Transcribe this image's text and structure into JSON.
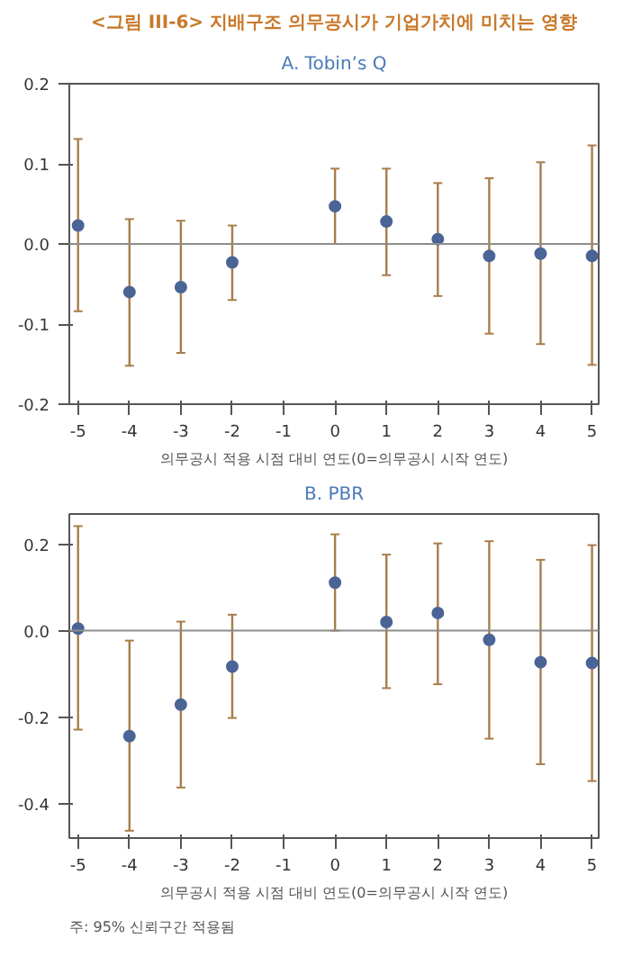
{
  "chart_data": [
    {
      "type": "scatter",
      "title": "<그림 III-6> 지배구조 의무공시가 기업가치에 미치는 영향",
      "subtitle": "A. Tobin’s Q",
      "xlabel": "의무공시 적용 시점 대비 연도(0=의무공시 시작 연도)",
      "x": [
        -5,
        -4,
        -3,
        -2,
        -1,
        0,
        1,
        2,
        3,
        4,
        5
      ],
      "series": [
        {
          "color": "#4a6496",
          "values": [
            0.023,
            -0.06,
            -0.054,
            -0.023,
            null,
            0.047,
            0.028,
            0.006,
            -0.015,
            -0.012,
            -0.015
          ],
          "errors": [
            [
              -0.084,
              0.131
            ],
            [
              -0.152,
              0.031
            ],
            [
              -0.136,
              0.029
            ],
            [
              -0.07,
              0.023
            ],
            null,
            [
              0.0,
              0.094
            ],
            [
              -0.039,
              0.094
            ],
            [
              -0.065,
              0.076
            ],
            [
              -0.112,
              0.082
            ],
            [
              -0.125,
              0.102
            ],
            [
              -0.151,
              0.123
            ]
          ]
        }
      ],
      "xlim": [
        -5.17,
        5.13
      ],
      "ylim": [
        -0.2,
        0.2
      ],
      "xticks": [
        -5,
        -4,
        -3,
        -2,
        -1,
        0,
        1,
        2,
        3,
        4,
        5
      ],
      "yticks": [
        -0.2,
        -0.1,
        {
          "value": 0,
          "label": "0.0"
        },
        0.1,
        0.2
      ],
      "ref_lines": [
        {
          "axis": "y",
          "value": 0,
          "color": "#8c8c8c"
        }
      ],
      "marker": "circle",
      "grid": false
    },
    {
      "type": "scatter",
      "subtitle": "B. PBR",
      "xlabel": "의무공시 적용 시점 대비 연도(0=의무공시 시작 연도)",
      "x": [
        -5,
        -4,
        -3,
        -2,
        -1,
        0,
        1,
        2,
        3,
        4,
        5
      ],
      "series": [
        {
          "color": "#4a6496",
          "values": [
            0.005,
            -0.244,
            -0.171,
            -0.083,
            null,
            0.111,
            0.02,
            0.041,
            -0.021,
            -0.073,
            -0.075
          ],
          "errors": [
            [
              -0.229,
              0.242
            ],
            [
              -0.463,
              -0.023
            ],
            [
              -0.363,
              0.021
            ],
            [
              -0.202,
              0.037
            ],
            null,
            [
              0.0,
              0.223
            ],
            [
              -0.133,
              0.176
            ],
            [
              -0.124,
              0.202
            ],
            [
              -0.25,
              0.207
            ],
            [
              -0.309,
              0.164
            ],
            [
              -0.348,
              0.198
            ]
          ]
        }
      ],
      "xlim": [
        -5.17,
        5.13
      ],
      "ylim": [
        -0.48,
        0.27
      ],
      "xticks": [
        -5,
        -4,
        -3,
        -2,
        -1,
        0,
        1,
        2,
        3,
        4,
        5
      ],
      "yticks": [
        -0.4,
        -0.2,
        {
          "value": 0,
          "label": "0.0"
        },
        0.2
      ],
      "ref_lines": [
        {
          "axis": "y",
          "value": 0,
          "color": "#8c8c8c"
        }
      ],
      "annotations": [
        "주: 95% 신뢰구간 적용됨"
      ],
      "marker": "circle",
      "grid": false
    }
  ]
}
